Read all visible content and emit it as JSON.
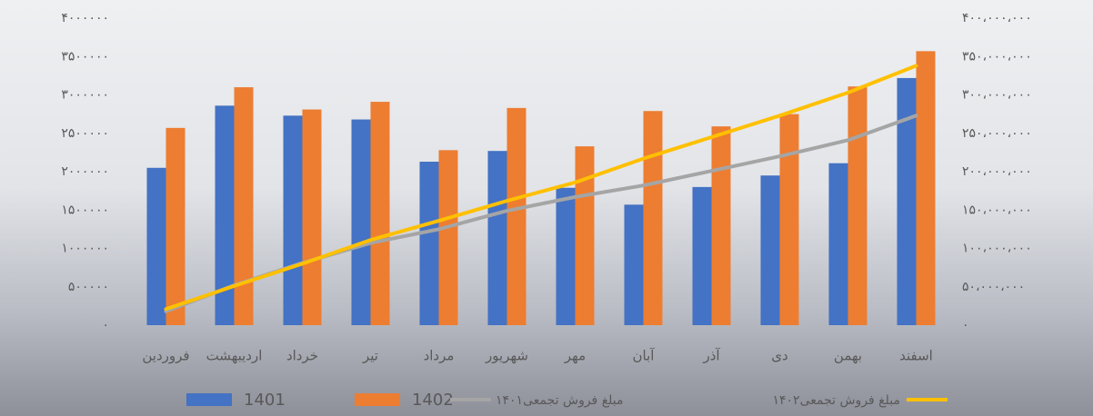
{
  "chart_data": {
    "type": "bar",
    "categories": [
      "فروردین",
      "اردیبهشت",
      "خرداد",
      "تیر",
      "مرداد",
      "شهریور",
      "مهر",
      "آبان",
      "آذر",
      "دی",
      "بهمن",
      "اسفند"
    ],
    "series": [
      {
        "name": "1401",
        "type": "bar",
        "color": "#4472c4",
        "values": [
          2050000,
          2860000,
          2730000,
          2680000,
          2130000,
          2270000,
          1790000,
          1570000,
          1800000,
          1950000,
          2110000,
          3220000
        ]
      },
      {
        "name": "1402",
        "type": "bar",
        "color": "#ed7d31",
        "values": [
          2570000,
          3100000,
          2810000,
          2910000,
          2280000,
          2830000,
          2330000,
          2790000,
          2590000,
          2750000,
          3110000,
          3570000
        ]
      },
      {
        "name": "مبلغ فروش  تجمعی۱۴۰۱",
        "type": "line",
        "axis": "y2",
        "color": "#a5a5a5",
        "values": [
          18000000,
          52000000,
          81000000,
          107000000,
          125000000,
          149000000,
          167000000,
          182000000,
          201000000,
          220000000,
          241000000,
          273000000
        ]
      },
      {
        "name": "مبلغ فروش  تجمعی۱۴۰۲",
        "type": "line",
        "axis": "y2",
        "color": "#ffc000",
        "values": [
          21000000,
          51000000,
          80000000,
          111000000,
          136000000,
          162000000,
          186000000,
          217000000,
          245000000,
          273000000,
          303000000,
          338000000
        ]
      }
    ],
    "ylim": [
      0,
      4000000
    ],
    "yticks": [
      {
        "value": 0,
        "label": "۰"
      },
      {
        "value": 500000,
        "label": "۵۰۰۰۰۰"
      },
      {
        "value": 1000000,
        "label": "۱۰۰۰۰۰۰"
      },
      {
        "value": 1500000,
        "label": "۱۵۰۰۰۰۰"
      },
      {
        "value": 2000000,
        "label": "۲۰۰۰۰۰۰"
      },
      {
        "value": 2500000,
        "label": "۲۵۰۰۰۰۰"
      },
      {
        "value": 3000000,
        "label": "۳۰۰۰۰۰۰"
      },
      {
        "value": 3500000,
        "label": "۳۵۰۰۰۰۰"
      },
      {
        "value": 4000000,
        "label": "۴۰۰۰۰۰۰"
      }
    ],
    "y2lim": [
      0,
      400000000
    ],
    "y2ticks": [
      {
        "value": 0,
        "label": "۰"
      },
      {
        "value": 50000000,
        "label": "۵۰،۰۰۰،۰۰۰"
      },
      {
        "value": 100000000,
        "label": "۱۰۰،۰۰۰،۰۰۰"
      },
      {
        "value": 150000000,
        "label": "۱۵۰،۰۰۰،۰۰۰"
      },
      {
        "value": 200000000,
        "label": "۲۰۰،۰۰۰،۰۰۰"
      },
      {
        "value": 250000000,
        "label": "۲۵۰،۰۰۰،۰۰۰"
      },
      {
        "value": 300000000,
        "label": "۳۰۰،۰۰۰،۰۰۰"
      },
      {
        "value": 350000000,
        "label": "۳۵۰،۰۰۰،۰۰۰"
      },
      {
        "value": 400000000,
        "label": "۴۰۰،۰۰۰،۰۰۰"
      }
    ],
    "grid": false
  }
}
